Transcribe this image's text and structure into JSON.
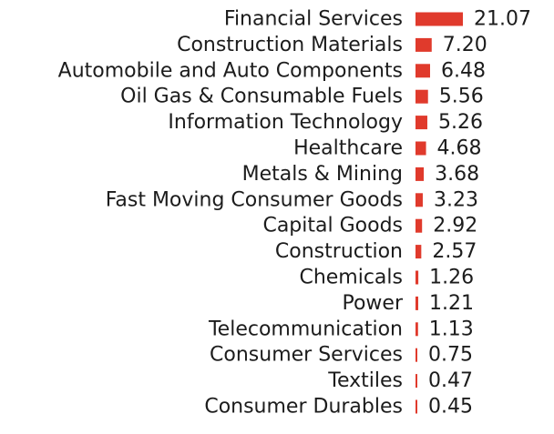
{
  "chart_data": {
    "type": "bar",
    "orientation": "horizontal",
    "categories": [
      "Financial Services",
      "Construction Materials",
      "Automobile and Auto Components",
      "Oil Gas & Consumable Fuels",
      "Information Technology",
      "Healthcare",
      "Metals & Mining",
      "Fast Moving Consumer Goods",
      "Capital Goods",
      "Construction",
      "Chemicals",
      "Power",
      "Telecommunication",
      "Consumer Services",
      "Textiles",
      "Consumer Durables"
    ],
    "values": [
      21.07,
      7.2,
      6.48,
      5.56,
      5.26,
      4.68,
      3.68,
      3.23,
      2.92,
      2.57,
      1.26,
      1.21,
      1.13,
      0.75,
      0.47,
      0.45
    ],
    "value_labels": [
      "21.07",
      "7.20",
      "6.48",
      "5.56",
      "5.26",
      "4.68",
      "3.68",
      "3.23",
      "2.92",
      "2.57",
      "1.26",
      "1.21",
      "1.13",
      "0.75",
      "0.47",
      "0.45"
    ],
    "bar_color": "#e03a2c",
    "data_labels": true,
    "grid": false,
    "legend": false,
    "xlim": [
      0,
      21.07
    ],
    "title": "",
    "xlabel": "",
    "ylabel": ""
  }
}
